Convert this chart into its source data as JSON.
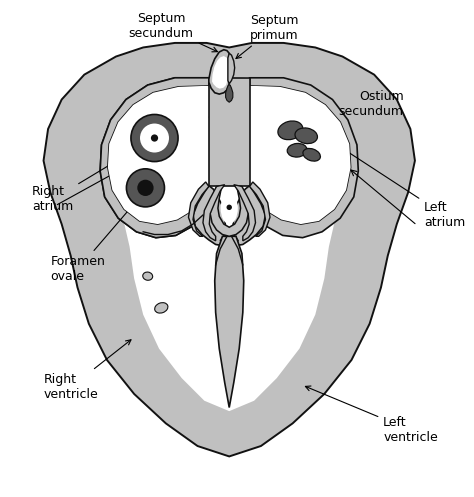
{
  "background_color": "#ffffff",
  "wall_color": "#c0c0c0",
  "edge_color": "#111111",
  "dark_color": "#555555",
  "vdark_color": "#111111",
  "font_size": 9,
  "figsize": [
    4.74,
    4.97
  ],
  "dpi": 100,
  "labels": {
    "septum_secundum": "Septum\nsecundum",
    "septum_primum": "Septum\nprimum",
    "ostium_secundum": "Ostium\nsecundum",
    "right_atrium": "Right\natrium",
    "left_atrium": "Left\natrium",
    "foramen_ovale": "Foramen\novale",
    "right_ventricle": "Right\nventricle",
    "left_ventricle": "Left\nventricle"
  }
}
